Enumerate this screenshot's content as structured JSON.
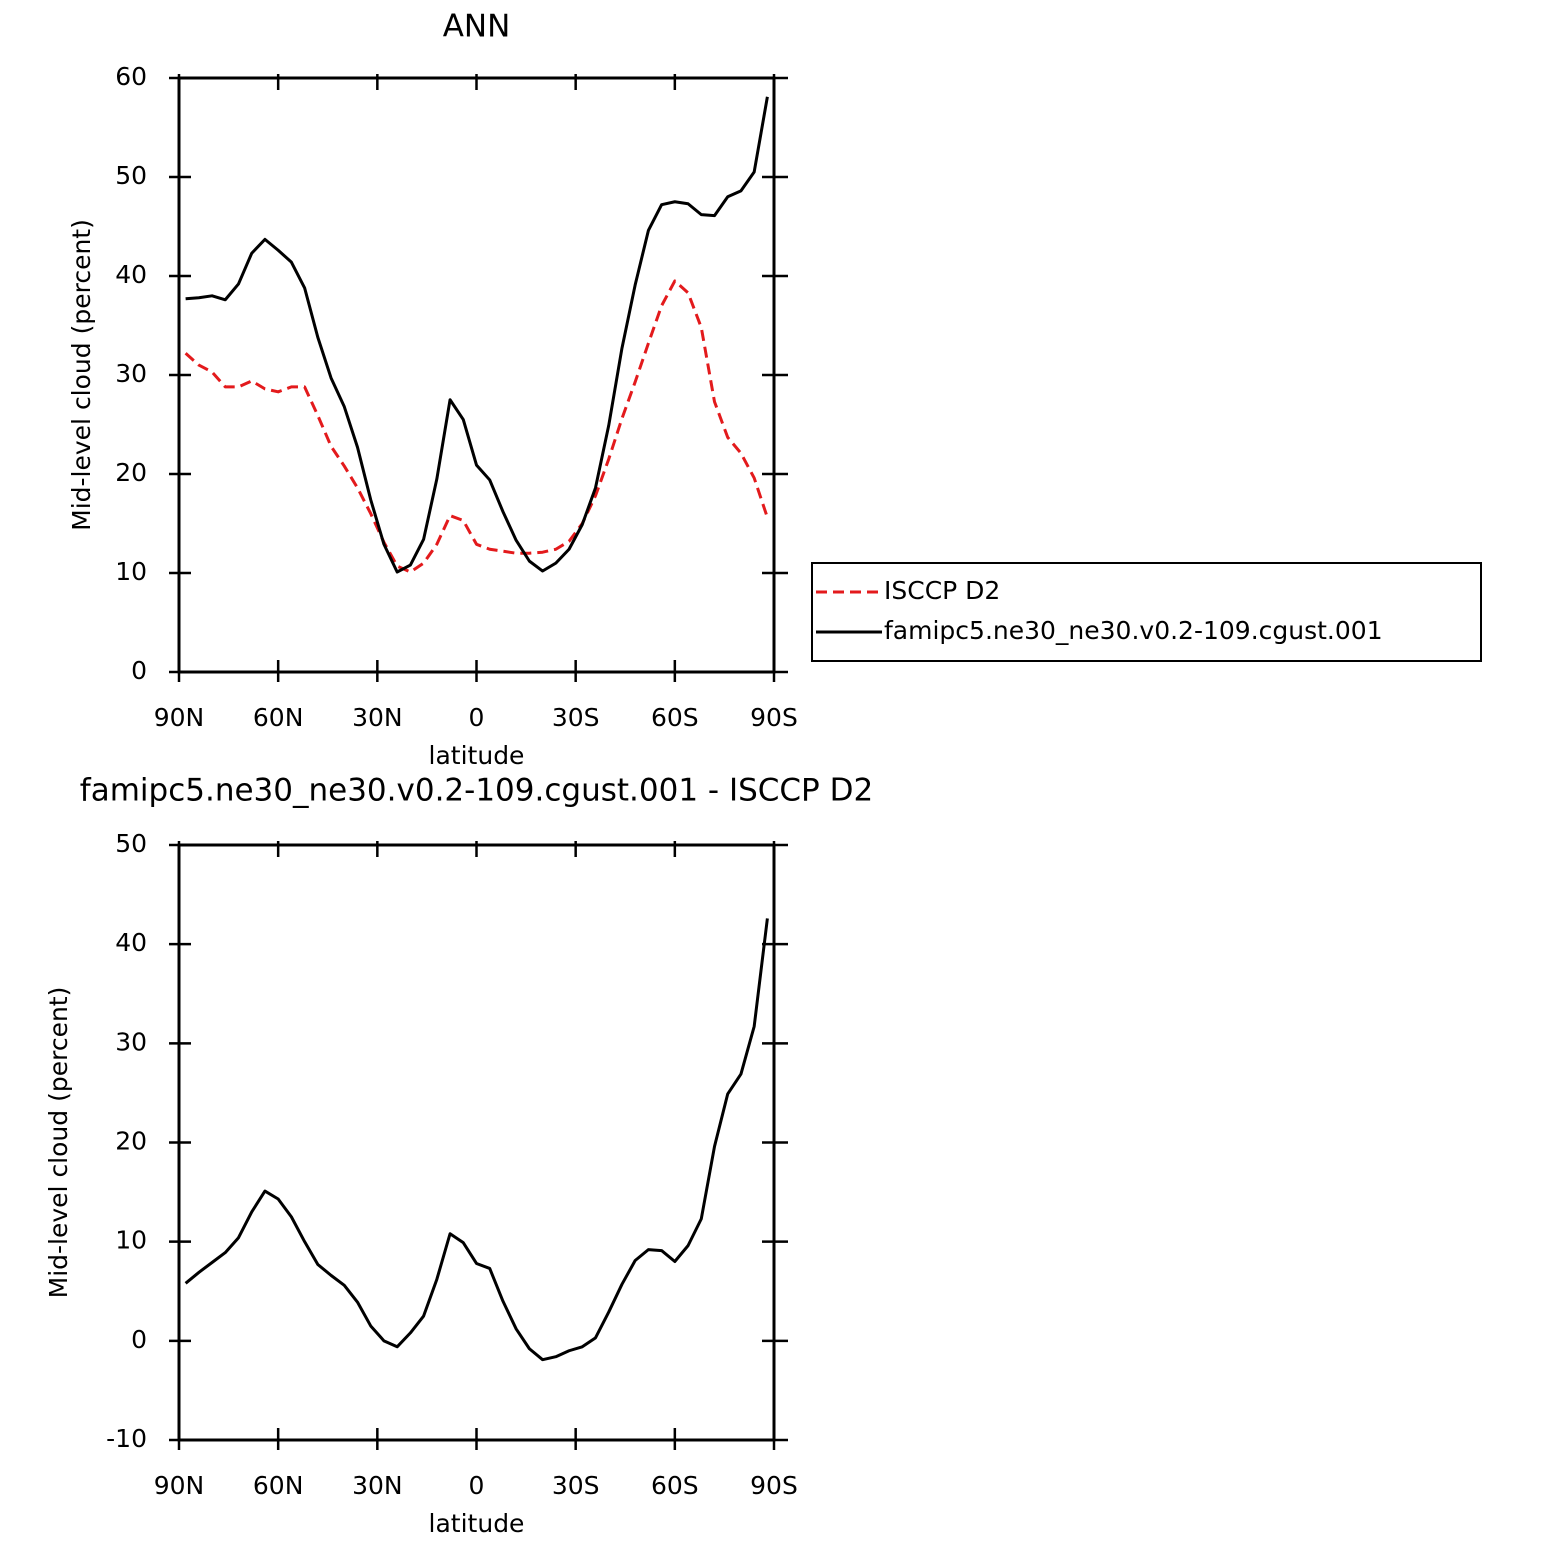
{
  "chart_data": [
    {
      "type": "line",
      "title": "ANN",
      "xlabel": "latitude",
      "ylabel": "Mid-level cloud (percent)",
      "x": [
        88,
        84,
        80,
        76,
        72,
        68,
        64,
        60,
        56,
        52,
        48,
        44,
        40,
        36,
        32,
        28,
        24,
        20,
        16,
        12,
        8,
        4,
        0,
        -4,
        -8,
        -12,
        -16,
        -20,
        -24,
        -28,
        -32,
        -36,
        -40,
        -44,
        -48,
        -52,
        -56,
        -60,
        -64,
        -68,
        -72,
        -76,
        -80,
        -84,
        -88
      ],
      "series": [
        {
          "name": "ISCCP D2",
          "color": "#e31a1c",
          "dashed": true,
          "values": [
            32.2,
            31.0,
            30.3,
            28.8,
            28.8,
            29.4,
            28.6,
            28.3,
            28.8,
            28.8,
            25.9,
            22.8,
            20.8,
            18.6,
            16.0,
            13.1,
            10.7,
            10.1,
            11.0,
            12.9,
            15.8,
            15.3,
            12.9,
            12.4,
            12.2,
            12.0,
            12.0,
            12.1,
            12.4,
            13.2,
            15.0,
            17.8,
            21.5,
            25.6,
            29.3,
            33.2,
            37.0,
            39.5,
            38.3,
            34.8,
            27.3,
            23.7,
            22.1,
            19.6,
            15.6
          ]
        },
        {
          "name": "famipc5.ne30_ne30.v0.2-109.cgust.001",
          "color": "#000000",
          "dashed": false,
          "values": [
            37.7,
            37.8,
            38.0,
            37.6,
            39.2,
            42.3,
            43.7,
            42.6,
            41.4,
            38.8,
            33.8,
            29.7,
            26.8,
            22.7,
            17.4,
            12.9,
            10.1,
            10.8,
            13.4,
            19.5,
            27.5,
            25.5,
            20.9,
            19.4,
            16.2,
            13.3,
            11.2,
            10.2,
            11.0,
            12.4,
            14.9,
            18.6,
            24.9,
            32.7,
            39.1,
            44.6,
            47.2,
            47.5,
            47.3,
            46.2,
            46.1,
            48.0,
            48.6,
            50.5,
            58.1
          ]
        }
      ],
      "xlim": [
        90,
        -90
      ],
      "xticks": [
        {
          "value": 90,
          "label": "90N"
        },
        {
          "value": 60,
          "label": "60N"
        },
        {
          "value": 30,
          "label": "30N"
        },
        0,
        {
          "value": -30,
          "label": "30S"
        },
        {
          "value": -60,
          "label": "60S"
        },
        {
          "value": -90,
          "label": "90S"
        }
      ],
      "ylim": [
        0,
        60
      ],
      "yticks": [
        0,
        10,
        20,
        30,
        40,
        50,
        60
      ],
      "legend": "right"
    },
    {
      "type": "line",
      "title": "famipc5.ne30_ne30.v0.2-109.cgust.001 - ISCCP D2",
      "xlabel": "latitude",
      "ylabel": "Mid-level cloud (percent)",
      "x": [
        88,
        84,
        80,
        76,
        72,
        68,
        64,
        60,
        56,
        52,
        48,
        44,
        40,
        36,
        32,
        28,
        24,
        20,
        16,
        12,
        8,
        4,
        0,
        -4,
        -8,
        -12,
        -16,
        -20,
        -24,
        -28,
        -32,
        -36,
        -40,
        -44,
        -48,
        -52,
        -56,
        -60,
        -64,
        -68,
        -72,
        -76,
        -80,
        -84,
        -88
      ],
      "values": [
        5.8,
        6.9,
        7.9,
        8.9,
        10.4,
        13.0,
        15.1,
        14.3,
        12.5,
        10.0,
        7.7,
        6.6,
        5.6,
        3.9,
        1.5,
        0.0,
        -0.6,
        0.8,
        2.5,
        6.2,
        10.8,
        9.9,
        7.8,
        7.3,
        4.0,
        1.2,
        -0.8,
        -1.9,
        -1.6,
        -1.0,
        -0.6,
        0.3,
        2.9,
        5.7,
        8.1,
        9.2,
        9.1,
        8.0,
        9.6,
        12.3,
        19.6,
        24.9,
        26.9,
        31.7,
        42.6
      ],
      "color": "#000000",
      "xlim": [
        90,
        -90
      ],
      "xticks": [
        {
          "value": 90,
          "label": "90N"
        },
        {
          "value": 60,
          "label": "60N"
        },
        {
          "value": 30,
          "label": "30N"
        },
        0,
        {
          "value": -30,
          "label": "30S"
        },
        {
          "value": -60,
          "label": "60S"
        },
        {
          "value": -90,
          "label": "90S"
        }
      ],
      "ylim": [
        -10,
        50
      ],
      "yticks": [
        -10,
        0,
        10,
        20,
        30,
        40,
        50
      ]
    }
  ]
}
